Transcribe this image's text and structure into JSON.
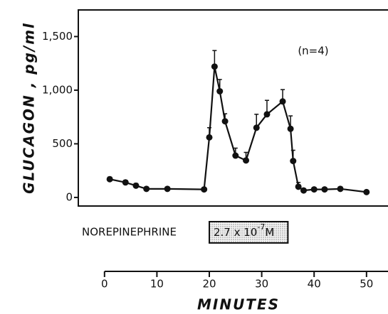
{
  "chart_data": {
    "type": "line",
    "xlabel": "MINUTES",
    "ylabel": "GLUCAGON , pg/ml",
    "annotation": "(n=4)",
    "infusion": {
      "label": "NOREPINEPHRINE",
      "dose": "2.7 x 10",
      "exponent": "-7",
      "unit": "M",
      "start": 20,
      "end": 35
    },
    "x": [
      1,
      4,
      6,
      8,
      12,
      19,
      20,
      21,
      22,
      23,
      25,
      27,
      29,
      31,
      34,
      35.5,
      36,
      37,
      38,
      40,
      42,
      45,
      50
    ],
    "series": [
      {
        "name": "Glucagon",
        "color": "#111111",
        "values": [
          170,
          140,
          110,
          80,
          80,
          75,
          560,
          1220,
          990,
          710,
          390,
          345,
          650,
          775,
          895,
          640,
          340,
          100,
          65,
          75,
          75,
          80,
          50
        ],
        "errors": [
          20,
          20,
          20,
          15,
          15,
          15,
          90,
          150,
          110,
          70,
          70,
          75,
          125,
          130,
          110,
          120,
          100,
          40,
          15,
          15,
          15,
          15,
          15
        ]
      }
    ],
    "xlim": [
      -5,
      54.1
    ],
    "ylim": [
      -80,
      1748
    ],
    "xticks": [
      0,
      10,
      20,
      30,
      40,
      50
    ],
    "yticks": [
      0,
      500,
      {
        "value": 1000,
        "label": "1,000"
      },
      {
        "value": 1500,
        "label": "1,500"
      }
    ]
  }
}
